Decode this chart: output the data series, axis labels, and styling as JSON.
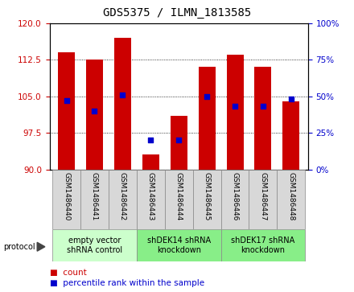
{
  "title": "GDS5375 / ILMN_1813585",
  "samples": [
    "GSM1486440",
    "GSM1486441",
    "GSM1486442",
    "GSM1486443",
    "GSM1486444",
    "GSM1486445",
    "GSM1486446",
    "GSM1486447",
    "GSM1486448"
  ],
  "counts": [
    114.0,
    112.5,
    117.0,
    93.0,
    101.0,
    111.0,
    113.5,
    111.0,
    104.0
  ],
  "percentiles": [
    47,
    40,
    51,
    20,
    20,
    50,
    43,
    43,
    48
  ],
  "ylim_left": [
    90,
    120
  ],
  "ylim_right": [
    0,
    100
  ],
  "yticks_left": [
    90,
    97.5,
    105,
    112.5,
    120
  ],
  "yticks_right": [
    0,
    25,
    50,
    75,
    100
  ],
  "bar_color": "#cc0000",
  "dot_color": "#0000cc",
  "bar_bottom": 90,
  "bar_width": 0.6,
  "groups": [
    {
      "label": "empty vector\nshRNA control",
      "start": 0,
      "end": 3,
      "color": "#ccffcc"
    },
    {
      "label": "shDEK14 shRNA\nknockdown",
      "start": 3,
      "end": 6,
      "color": "#88ee88"
    },
    {
      "label": "shDEK17 shRNA\nknockdown",
      "start": 6,
      "end": 9,
      "color": "#88ee88"
    }
  ],
  "legend_count_label": "count",
  "legend_pct_label": "percentile rank within the sample",
  "protocol_label": "protocol",
  "title_fontsize": 10,
  "tick_fontsize": 7.5,
  "label_fontsize": 6.5,
  "group_fontsize": 7
}
